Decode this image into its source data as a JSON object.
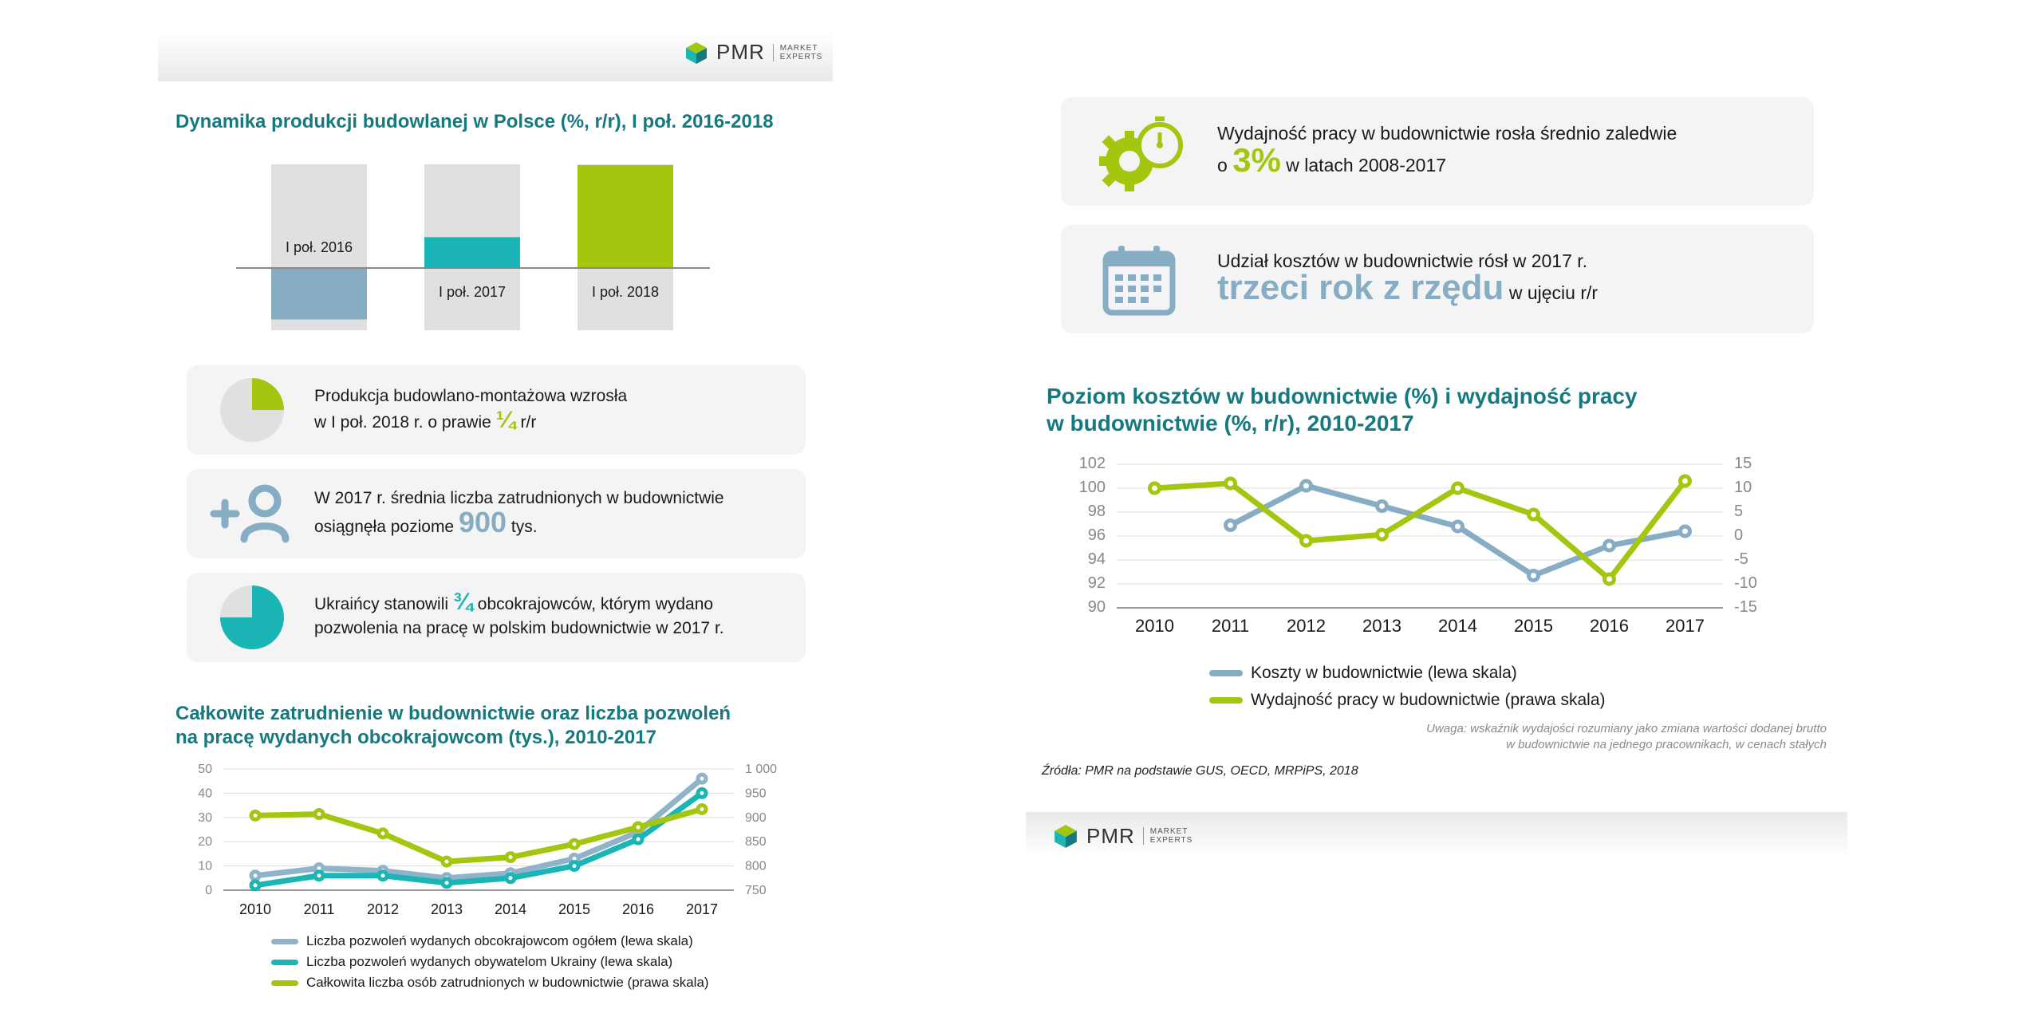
{
  "brand": {
    "name": "PMR",
    "sub_line1": "MARKET",
    "sub_line2": "EXPERTS"
  },
  "left": {
    "production_title": "Dynamika produkcji budowlanej w Polsce (%, r/r), I poł. 2016-2018",
    "production_labels": [
      "I poł. 2016",
      "I poł. 2017",
      "I poł. 2018"
    ],
    "cards": [
      {
        "text_a": "Produkcja budowlano-montażowa wzrosła",
        "text_b": "w I poł. 2018 r. o prawie",
        "highlight": "¼",
        "text_c": "r/r"
      },
      {
        "text_a": "W 2017 r. średnia liczba zatrudnionych w budownictwie",
        "text_b": "osiągnęła poziome",
        "highlight": "900",
        "text_c": "tys."
      },
      {
        "text_a": "Ukraińcy stanowili",
        "highlight": "¾",
        "text_a2": "obcokrajowców, którym wydano",
        "text_b": "pozwolenia na pracę w polskim budownictwie w 2017 r."
      }
    ],
    "employment_title_line1": "Całkowite zatrudnienie w budownictwie oraz liczba pozwoleń",
    "employment_title_line2": "na pracę wydanych obcokrajowcom (tys.), 2010-2017"
  },
  "right": {
    "card1_line1": "Wydajność pracy w budownictwie rosła średnio zaledwie",
    "card1_pre": "o",
    "card1_highlight": "3%",
    "card1_post": "w latach 2008-2017",
    "card2_line1": "Udział kosztów w budownictwie rósł w 2017 r.",
    "card2_highlight": "trzeci rok z rzędu",
    "card2_post": "w ujęciu r/r",
    "cost_title_line1": "Poziom kosztów w budownictwie (%) i wydajność pracy",
    "cost_title_line2": "w budownictwie (%, r/r), 2010-2017",
    "note_line1": "Uwaga: wskaźnik wydajości rozumiany jako zmiana wartości dodanej brutto",
    "note_line2": "w budownictwie na jednego pracownikach, w cenach stałych",
    "source": "Źródła: PMR na podstawie GUS, OECD, MRPiPS, 2018"
  },
  "colors": {
    "teal": "#157a80",
    "green": "#a3c60f",
    "blue": "#86adc3",
    "aqua": "#1bb5b5",
    "grey": "#e0e0e0"
  },
  "icons": [
    "pie-quarter-icon",
    "add-person-icon",
    "pie-three-quarter-icon",
    "gear-stopwatch-icon",
    "calendar-icon"
  ],
  "chart_data": [
    {
      "type": "bar",
      "categories": [
        "I poł. 2016",
        "I poł. 2017",
        "I poł. 2018"
      ],
      "values": [
        -15,
        9,
        30
      ],
      "title": "Dynamika produkcji budowlanej w Polsce (%, r/r), I poł. 2016-2018",
      "colors": [
        "#86adc3",
        "#1bb5b5",
        "#a3c60f"
      ]
    },
    {
      "type": "line",
      "title": "Całkowite zatrudnienie w budownictwie oraz liczba pozwoleń na pracę wydanych obcokrajowcom (tys.), 2010-2017",
      "x": [
        "2010",
        "2011",
        "2012",
        "2013",
        "2014",
        "2015",
        "2016",
        "2017"
      ],
      "ylim_left": [
        0,
        50
      ],
      "yticks_left": [
        "0",
        "10",
        "20",
        "30",
        "40",
        "50"
      ],
      "ylim_right": [
        750,
        1000
      ],
      "yticks_right": [
        "750",
        "800",
        "850",
        "900",
        "950",
        "1 000"
      ],
      "series": [
        {
          "name": "Liczba pozwoleń wydanych obcokrajowcom ogółem (lewa skala)",
          "axis": "left",
          "color": "#8fb3c9",
          "values": [
            6,
            9,
            8,
            5,
            7,
            13,
            24,
            46
          ]
        },
        {
          "name": "Liczba pozwoleń wydanych obywatelom Ukrainy (lewa skala)",
          "axis": "left",
          "color": "#1bb5b5",
          "values": [
            2,
            6,
            6,
            3,
            5,
            10,
            21,
            40
          ]
        },
        {
          "name": "Całkowita liczba osób zatrudnionych w budownictwie (prawa skala)",
          "axis": "right",
          "color": "#a3c60f",
          "values": [
            904,
            907,
            867,
            809,
            818,
            845,
            880,
            917
          ]
        }
      ]
    },
    {
      "type": "line",
      "title": "Poziom kosztów w budownictwie (%) i wydajność pracy w budownictwie (%, r/r), 2010-2017",
      "x": [
        "2010",
        "2011",
        "2012",
        "2013",
        "2014",
        "2015",
        "2016",
        "2017"
      ],
      "ylim_left": [
        90,
        102
      ],
      "yticks_left": [
        "90",
        "92",
        "94",
        "96",
        "98",
        "100",
        "102"
      ],
      "ylim_right": [
        -15,
        15
      ],
      "yticks_right": [
        "-15",
        "-10",
        "-5",
        "0",
        "5",
        "10",
        "15"
      ],
      "series": [
        {
          "name": "Koszty w budownictwie (lewa skala)",
          "axis": "left",
          "color": "#86adc3",
          "values": [
            null,
            96.9,
            100.2,
            98.5,
            96.8,
            92.7,
            95.2,
            96.4
          ]
        },
        {
          "name": "Wydajność pracy w budownictwie (prawa skala)",
          "axis": "right",
          "color": "#a3c60f",
          "values": [
            10,
            11,
            -1,
            0.3,
            10,
            4.5,
            -9,
            11.5
          ]
        }
      ]
    }
  ]
}
